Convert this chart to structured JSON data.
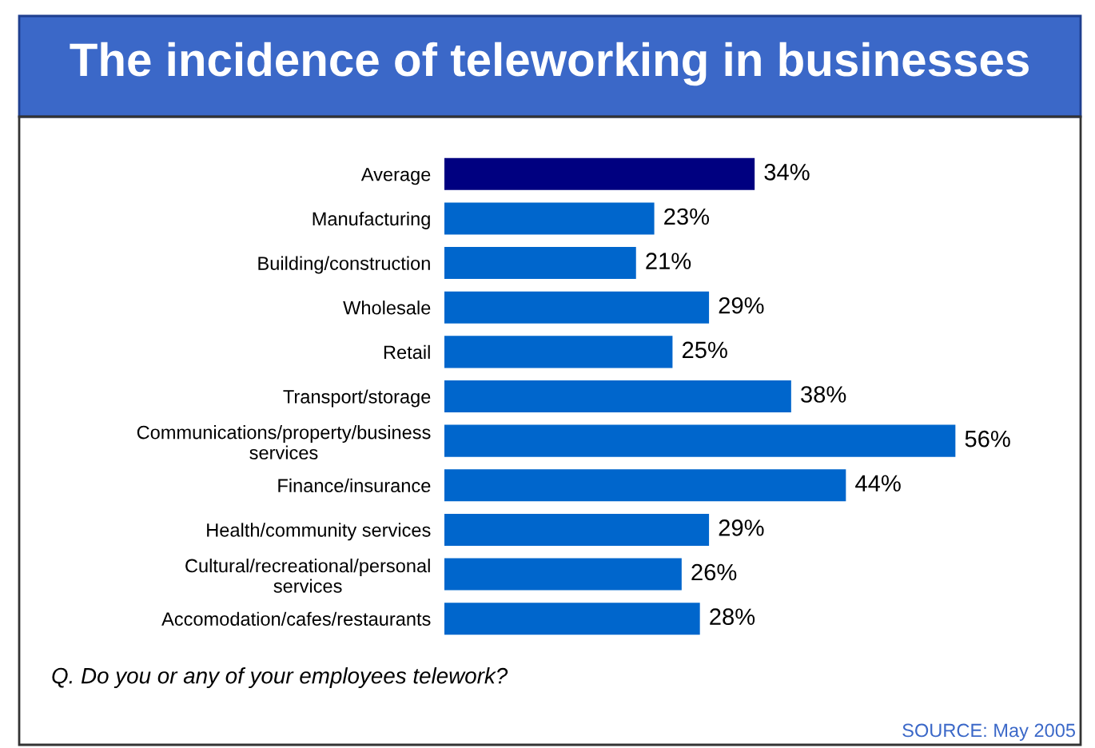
{
  "chart_data": {
    "type": "bar",
    "orientation": "horizontal",
    "title": "The incidence of teleworking in businesses",
    "categories": [
      "Average",
      "Manufacturing",
      "Building/construction",
      "Wholesale",
      "Retail",
      "Transport/storage",
      "Communications/property/business\nservices",
      "Finance/insurance",
      "Health/community services",
      "Cultural/recreational/personal\nservices",
      "Accomodation/cafes/restaurants"
    ],
    "values": [
      34,
      23,
      21,
      29,
      25,
      38,
      56,
      44,
      29,
      26,
      28
    ],
    "colors": [
      "#000080",
      "#0066cc",
      "#0066cc",
      "#0066cc",
      "#0066cc",
      "#0066cc",
      "#0066cc",
      "#0066cc",
      "#0066cc",
      "#0066cc",
      "#0066cc"
    ],
    "value_labels": [
      "34%",
      "23%",
      "21%",
      "29%",
      "25%",
      "38%",
      "56%",
      "44%",
      "29%",
      "26%",
      "28%"
    ],
    "annotations": [
      "Q. Do you or any of your employees telework?",
      "SOURCE: May 2005"
    ],
    "grid": false,
    "legend": false,
    "tick_labels": "y"
  }
}
